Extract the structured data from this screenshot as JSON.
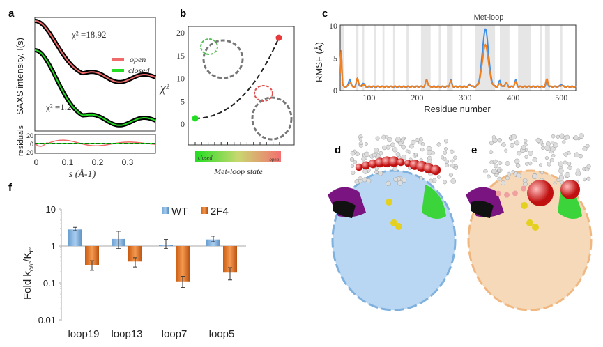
{
  "panels": {
    "a": "a",
    "b": "b",
    "c": "c",
    "d": "d",
    "e": "e",
    "f": "f"
  },
  "colors": {
    "open": "#f06a6a",
    "closed": "#22dd22",
    "wt": "#7fb1df",
    "f24": "#e8731c",
    "rmsf_blue": "#3f8fe8",
    "rmsf_orange": "#f08020"
  },
  "chart_data": [
    {
      "panel": "a",
      "type": "line",
      "ylabel": "SAXS intensity, I(s)",
      "xlabel": "s (Å-1)",
      "xticks": [
        "0",
        "0.1",
        "0.2",
        "0.3"
      ],
      "xlim": [
        0,
        0.38
      ],
      "legend": [
        {
          "name": "open"
        },
        {
          "name": "closed"
        }
      ],
      "legend_position": "right",
      "annotations": [
        "χ² =18.92",
        "χ² =1.24"
      ],
      "residuals": {
        "ylabel": "residuals",
        "yticks": [
          "20",
          "0",
          "-20"
        ]
      }
    },
    {
      "panel": "b",
      "type": "scatter",
      "ylabel": "χ²",
      "yticks": [
        "0",
        "5",
        "10",
        "15",
        "20"
      ],
      "ylim": [
        -4,
        21
      ],
      "points": [
        {
          "state": "closed",
          "chi2": 1.24
        },
        {
          "state": "open",
          "chi2": 18.92
        }
      ],
      "colorbar": {
        "left": "closed",
        "right": "open",
        "label": "Met-loop state"
      }
    },
    {
      "panel": "c",
      "type": "line",
      "title": "Met-loop",
      "xlabel": "Residue number",
      "ylabel": "RMSF (Å)",
      "xticks": [
        "100",
        "200",
        "300",
        "400",
        "500"
      ],
      "yticks": [
        "0",
        "5",
        "10"
      ],
      "xlim": [
        40,
        530
      ],
      "ylim": [
        0,
        10
      ],
      "series": [
        {
          "name": "blue",
          "peaks": [
            [
              42,
              6
            ],
            [
              60,
              1.8
            ],
            [
              76,
              1.8
            ],
            [
              88,
              1.2
            ],
            [
              220,
              1.7
            ],
            [
              270,
              1.6
            ],
            [
              310,
              1.0
            ],
            [
              342,
              9.4
            ],
            [
              372,
              1.5
            ],
            [
              385,
              1.3
            ],
            [
              405,
              1.6
            ],
            [
              470,
              1.3
            ],
            [
              500,
              1.0
            ]
          ]
        },
        {
          "name": "orange",
          "peaks": [
            [
              42,
              6.3
            ],
            [
              60,
              1.3
            ],
            [
              76,
              2.0
            ],
            [
              88,
              0.9
            ],
            [
              220,
              1.7
            ],
            [
              270,
              1.4
            ],
            [
              310,
              0.9
            ],
            [
              342,
              7.0
            ],
            [
              372,
              1.1
            ],
            [
              385,
              1.2
            ],
            [
              405,
              1.3
            ],
            [
              470,
              1.8
            ],
            [
              500,
              0.8
            ]
          ]
        }
      ]
    },
    {
      "panel": "f",
      "type": "bar",
      "ylabel": "Fold kcat/Km",
      "yscale": "log",
      "yticks": [
        "10",
        "1",
        "0.1",
        "0.01"
      ],
      "ylim": [
        0.01,
        10
      ],
      "categories": [
        "loop19",
        "loop13",
        "loop7",
        "loop5"
      ],
      "series": [
        {
          "name": "WT",
          "values": [
            2.8,
            1.55,
            1.05,
            1.5
          ],
          "err_low": [
            2.6,
            0.85,
            0.85,
            1.3
          ],
          "err_high": [
            3.2,
            2.5,
            1.5,
            1.85
          ]
        },
        {
          "name": "2F4",
          "values": [
            0.3,
            0.38,
            0.11,
            0.19
          ],
          "err_low": [
            0.22,
            0.27,
            0.075,
            0.12
          ],
          "err_high": [
            0.4,
            0.48,
            0.15,
            0.26
          ]
        }
      ],
      "legend_position": "top-right"
    }
  ]
}
